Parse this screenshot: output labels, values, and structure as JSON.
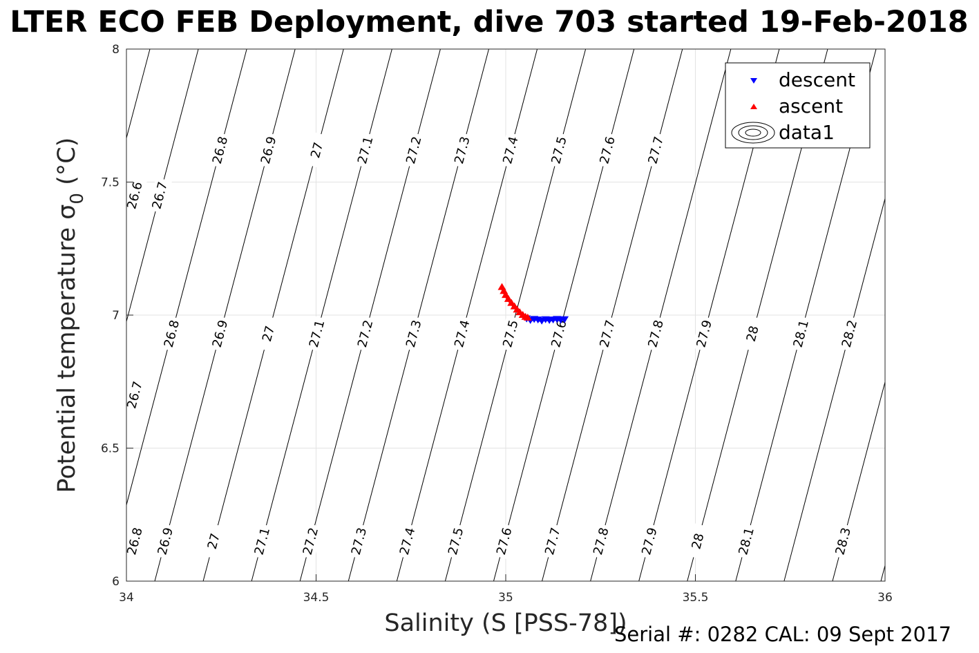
{
  "chart_data": {
    "type": "scatter",
    "title": "LTER ECO FEB Deployment, dive 703 started 19-Feb-2018",
    "xlabel": "Salinity (S [PSS-78])",
    "ylabel_main": "Potential temperature σ",
    "ylabel_sub": "0",
    "ylabel_unit": " (°C)",
    "footer": "Serial #: 0282  CAL: 09 Sept 2017",
    "xlim": [
      34,
      36
    ],
    "ylim": [
      6,
      8
    ],
    "x_ticks": [
      "34",
      "34.5",
      "35",
      "35.5",
      "36"
    ],
    "y_ticks": [
      "6",
      "6.5",
      "7",
      "7.5",
      "8"
    ],
    "grid": true,
    "legend": {
      "placement": "top-right",
      "entries": [
        {
          "label": "descent",
          "marker": "triangle-down",
          "color": "#0000ff"
        },
        {
          "label": "ascent",
          "marker": "triangle-up",
          "color": "#ff0000"
        },
        {
          "label": "data1",
          "marker": "contour"
        }
      ]
    },
    "contour_levels": [
      "26.6",
      "26.7",
      "26.8",
      "26.9",
      "27",
      "27.1",
      "27.2",
      "27.3",
      "27.4",
      "27.5",
      "27.6",
      "27.7",
      "27.8",
      "27.9",
      "28",
      "28.1",
      "28.2",
      "28.3"
    ],
    "contour_rows": [
      {
        "y": 7.62,
        "labels": [
          "26.8",
          "26.9",
          "27",
          "27.1",
          "27.2",
          "27.3",
          "27.4",
          "27.5",
          "27.6",
          "27.7"
        ]
      },
      {
        "y": 7.45,
        "labels": [
          "26.6",
          "26.7"
        ]
      },
      {
        "y": 6.93,
        "labels": [
          "26.8",
          "26.9",
          "27",
          "27.1",
          "27.2",
          "27.3",
          "27.4",
          "27.5",
          "27.6",
          "27.7",
          "27.8",
          "27.9",
          "28",
          "28.1",
          "28.2"
        ]
      },
      {
        "y": 6.7,
        "labels": [
          "26.7"
        ]
      },
      {
        "y": 6.15,
        "labels": [
          "26.8",
          "26.9",
          "27",
          "27.1",
          "27.2",
          "27.3",
          "27.4",
          "27.5",
          "27.6",
          "27.7",
          "27.8",
          "27.9",
          "28",
          "28.1",
          "28.3"
        ]
      }
    ],
    "series": [
      {
        "name": "descent",
        "color": "#0000ff",
        "x": [
          35.055,
          35.065,
          35.075,
          35.085,
          35.095,
          35.105,
          35.115,
          35.125,
          35.135,
          35.145,
          35.155
        ],
        "y": [
          6.988,
          6.982,
          6.986,
          6.984,
          6.98,
          6.985,
          6.982,
          6.984,
          6.986,
          6.983,
          6.985
        ]
      },
      {
        "name": "ascent",
        "color": "#ff0000",
        "x": [
          34.99,
          34.995,
          35.0,
          35.007,
          35.015,
          35.023,
          35.03,
          35.037,
          35.045,
          35.052,
          35.058
        ],
        "y": [
          7.105,
          7.09,
          7.075,
          7.06,
          7.045,
          7.032,
          7.02,
          7.01,
          7.0,
          6.993,
          6.99
        ]
      }
    ]
  }
}
